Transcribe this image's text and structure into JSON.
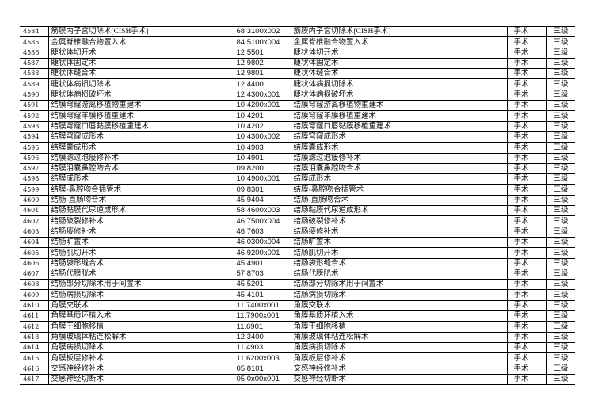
{
  "rows": [
    {
      "id": "4584",
      "name": "筋膜内子宫切除术[CISH手术]",
      "code": "68.3100x002",
      "name2": "筋膜内子宫切除术[CISH手术]",
      "type": "手术",
      "level": "三级"
    },
    {
      "id": "4585",
      "name": "金属脊椎融合物置入术",
      "code": "84.5100x004",
      "name2": "金属脊椎融合物置入术",
      "type": "手术",
      "level": "三级"
    },
    {
      "id": "4586",
      "name": "睫状体切开术",
      "code": "12.5501",
      "name2": "睫状体切开术",
      "type": "手术",
      "level": "三级"
    },
    {
      "id": "4587",
      "name": "睫状体固定术",
      "code": "12.9802",
      "name2": "睫状体固定术",
      "type": "手术",
      "level": "三级"
    },
    {
      "id": "4588",
      "name": "睫状体缝合术",
      "code": "12.9801",
      "name2": "睫状体缝合术",
      "type": "手术",
      "level": "三级"
    },
    {
      "id": "4589",
      "name": "睫状体病损切除术",
      "code": "12.4400",
      "name2": "睫状体病损切除术",
      "type": "手术",
      "level": "三级"
    },
    {
      "id": "4590",
      "name": "睫状体病损破坏术",
      "code": "12.4300x001",
      "name2": "睫状体病损破坏术",
      "type": "手术",
      "level": "三级"
    },
    {
      "id": "4591",
      "name": "结膜穹窿游离移植物重建术",
      "code": "10.4200x001",
      "name2": "结膜穹窿游离移植物重建术",
      "type": "手术",
      "level": "三级"
    },
    {
      "id": "4592",
      "name": "结膜穹窿羊膜移植重建术",
      "code": "10.4201",
      "name2": "结膜穹窿羊膜移植重建术",
      "type": "手术",
      "level": "三级"
    },
    {
      "id": "4593",
      "name": "结膜穹窿口唇黏膜移植重建术",
      "code": "10.4202",
      "name2": "结膜穹窿口唇黏膜移植重建术",
      "type": "手术",
      "level": "三级"
    },
    {
      "id": "4594",
      "name": "结膜穹窿成形术",
      "code": "10.4300x002",
      "name2": "结膜穹窿成形术",
      "type": "手术",
      "level": "三级"
    },
    {
      "id": "4595",
      "name": "结膜囊成形术",
      "code": "10.4903",
      "name2": "结膜囊成形术",
      "type": "手术",
      "level": "三级"
    },
    {
      "id": "4596",
      "name": "结膜滤过泡瘘修补术",
      "code": "10.4901",
      "name2": "结膜滤过泡瘘修补术",
      "type": "手术",
      "level": "三级"
    },
    {
      "id": "4597",
      "name": "结膜泪囊鼻腔吻合术",
      "code": "09.8200",
      "name2": "结膜泪囊鼻腔吻合术",
      "type": "手术",
      "level": "三级"
    },
    {
      "id": "4598",
      "name": "结膜成形术",
      "code": "10.4900x001",
      "name2": "结膜成形术",
      "type": "手术",
      "level": "三级"
    },
    {
      "id": "4599",
      "name": "结膜-鼻腔吻合插管术",
      "code": "09.8301",
      "name2": "结膜-鼻腔吻合插管术",
      "type": "手术",
      "level": "三级"
    },
    {
      "id": "4600",
      "name": "结肠-直肠吻合术",
      "code": "45.9404",
      "name2": "结肠-直肠吻合术",
      "type": "手术",
      "level": "三级"
    },
    {
      "id": "4601",
      "name": "结肠黏膜代尿道成形术",
      "code": "58.4600x003",
      "name2": "结肠黏膜代尿道成形术",
      "type": "手术",
      "level": "三级"
    },
    {
      "id": "4602",
      "name": "结肠破裂修补术",
      "code": "46.7500x004",
      "name2": "结肠破裂修补术",
      "type": "手术",
      "level": "三级"
    },
    {
      "id": "4603",
      "name": "结肠瘘修补术",
      "code": "46.7603",
      "name2": "结肠瘘修补术",
      "type": "手术",
      "level": "三级"
    },
    {
      "id": "4604",
      "name": "结肠旷置术",
      "code": "46.0300x004",
      "name2": "结肠旷置术",
      "type": "手术",
      "level": "三级"
    },
    {
      "id": "4605",
      "name": "结肠肌切开术",
      "code": "46.9200x001",
      "name2": "结肠肌切开术",
      "type": "手术",
      "level": "三级"
    },
    {
      "id": "4606",
      "name": "结肠袋形缝合术",
      "code": "45.4901",
      "name2": "结肠袋形缝合术",
      "type": "手术",
      "level": "三级"
    },
    {
      "id": "4607",
      "name": "结肠代膀胱术",
      "code": "57.8703",
      "name2": "结肠代膀胱术",
      "type": "手术",
      "level": "三级"
    },
    {
      "id": "4608",
      "name": "结肠部分切除术用于间置术",
      "code": "45.5201",
      "name2": "结肠部分切除术用于间置术",
      "type": "手术",
      "level": "三级"
    },
    {
      "id": "4609",
      "name": "结肠病损切除术",
      "code": "45.4101",
      "name2": "结肠病损切除术",
      "type": "手术",
      "level": "三级"
    },
    {
      "id": "4610",
      "name": "角膜交联术",
      "code": "11.7400x001",
      "name2": "角膜交联术",
      "type": "手术",
      "level": "三级"
    },
    {
      "id": "4611",
      "name": "角膜基质环植入术",
      "code": "11.7900x001",
      "name2": "角膜基质环植入术",
      "type": "手术",
      "level": "三级"
    },
    {
      "id": "4612",
      "name": "角膜干细胞移植",
      "code": "11.6901",
      "name2": "角膜干细胞移植",
      "type": "手术",
      "level": "三级"
    },
    {
      "id": "4613",
      "name": "角膜玻璃体粘连松解术",
      "code": "12.3400",
      "name2": "角膜玻璃体粘连松解术",
      "type": "手术",
      "level": "三级"
    },
    {
      "id": "4614",
      "name": "角膜病损切除术",
      "code": "11.4903",
      "name2": "角膜病损切除术",
      "type": "手术",
      "level": "三级"
    },
    {
      "id": "4615",
      "name": "角膜板层修补术",
      "code": "11.6200x003",
      "name2": "角膜板层修补术",
      "type": "手术",
      "level": "三级"
    },
    {
      "id": "4616",
      "name": "交感神经修补术",
      "code": "05.8101",
      "name2": "交感神经修补术",
      "type": "手术",
      "level": "三级"
    },
    {
      "id": "4617",
      "name": "交感神经切断术",
      "code": "05.0x00x001",
      "name2": "交感神经切断术",
      "type": "手术",
      "level": "三级"
    }
  ]
}
